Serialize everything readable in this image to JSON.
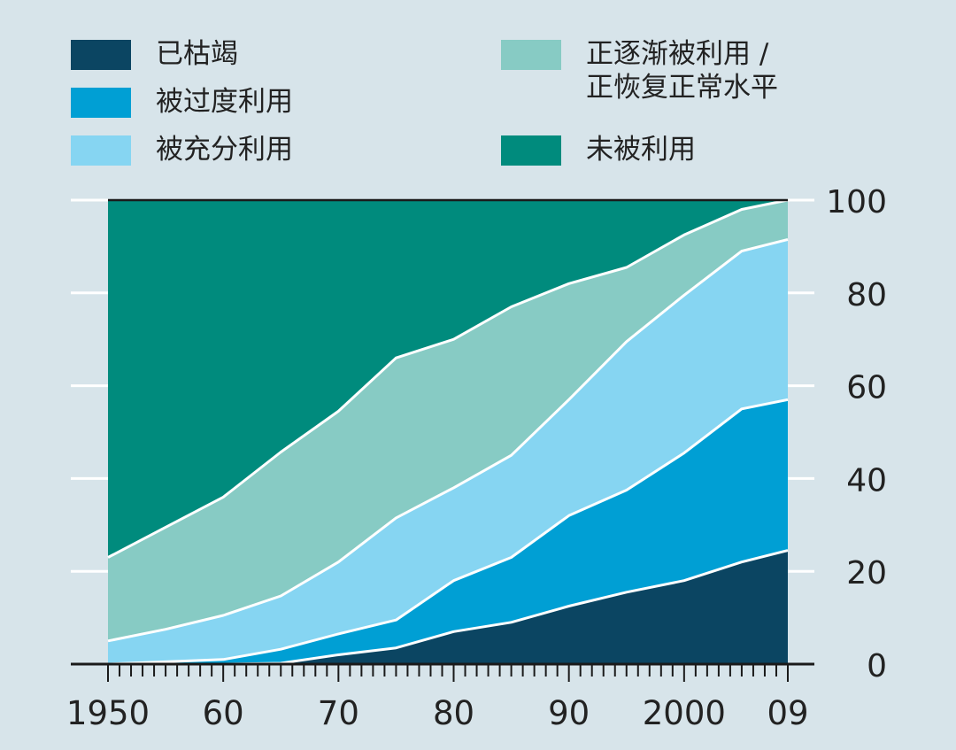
{
  "chart_data": {
    "type": "area",
    "stacked": true,
    "title": "",
    "xlabel": "",
    "ylabel": "",
    "xlim": [
      1950,
      2009
    ],
    "ylim": [
      0,
      100
    ],
    "y_ticks": [
      0,
      20,
      40,
      60,
      80,
      100
    ],
    "y_axis_side": "right",
    "x_ticks": [
      {
        "value": 1950,
        "label": "1950"
      },
      {
        "value": 1960,
        "label": "60"
      },
      {
        "value": 1970,
        "label": "70"
      },
      {
        "value": 1980,
        "label": "80"
      },
      {
        "value": 1990,
        "label": "90"
      },
      {
        "value": 2000,
        "label": "2000"
      },
      {
        "value": 2009,
        "label": "09"
      }
    ],
    "legend_placement": "top",
    "x": [
      1950,
      1955,
      1960,
      1965,
      1970,
      1975,
      1980,
      1985,
      1990,
      1995,
      2000,
      2005,
      2009
    ],
    "series": [
      {
        "name": "已枯竭",
        "color": "#0b4562",
        "values": [
          0,
          0,
          0,
          0.2,
          2,
          3.5,
          7,
          9,
          12.5,
          15.5,
          18,
          22,
          24.5
        ]
      },
      {
        "name": "被过度利用",
        "color": "#009fd4",
        "values": [
          0,
          0.5,
          1,
          3,
          4.5,
          6,
          11,
          14,
          19.5,
          22,
          27.5,
          33,
          32.5
        ]
      },
      {
        "name": "被充分利用",
        "color": "#86d5f2",
        "values": [
          5,
          7,
          9.5,
          11.5,
          15.5,
          22,
          20,
          22,
          25,
          32,
          34,
          34,
          34.5
        ]
      },
      {
        "name": "正逐渐被利用 / 正恢复正常水平",
        "color": "#87cbc4",
        "values": [
          18,
          22,
          25.5,
          31,
          32.5,
          34.5,
          32,
          32,
          25,
          16,
          13,
          9,
          8.5
        ]
      },
      {
        "name": "未被利用",
        "color": "#008b7d",
        "values": [
          77,
          70.5,
          64,
          54.3,
          45.5,
          34,
          30,
          23,
          18,
          14.5,
          7.5,
          2,
          0
        ]
      }
    ]
  }
}
